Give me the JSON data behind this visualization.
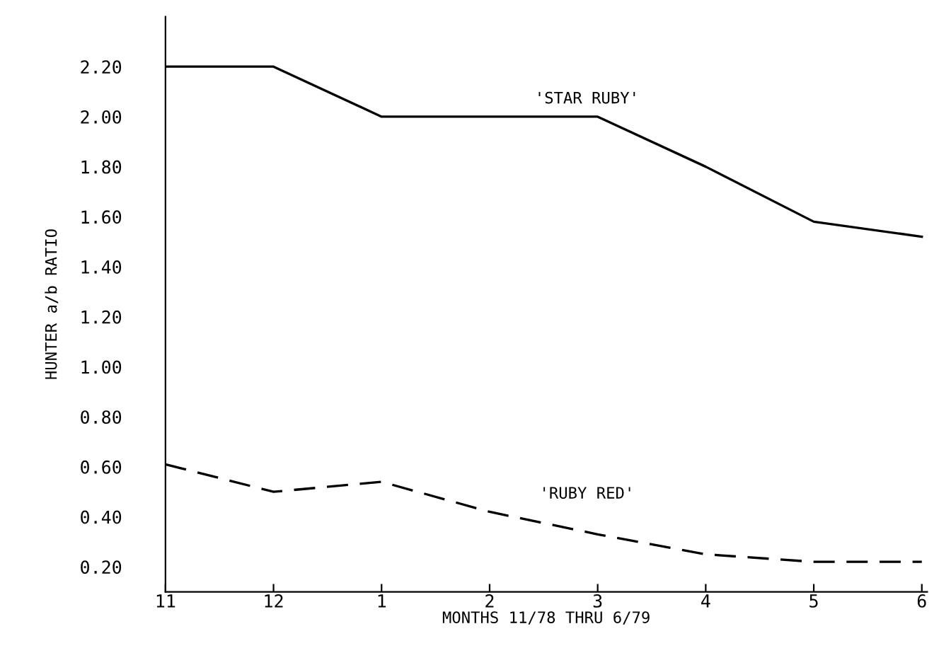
{
  "chart_data": {
    "type": "line",
    "xlabel": "MONTHS 11/78 THRU 6/79",
    "ylabel": "HUNTER a/b RATIO",
    "categories": [
      "11",
      "12",
      "1",
      "2",
      "3",
      "4",
      "5",
      "6"
    ],
    "series": [
      {
        "name": "'STAR RUBY'",
        "color": "#000000",
        "line_style": "solid",
        "values": [
          2.2,
          2.2,
          2.0,
          2.0,
          2.0,
          1.8,
          1.58,
          1.52
        ]
      },
      {
        "name": "'RUBY RED'",
        "color": "#000000",
        "line_style": "dashed",
        "values": [
          0.61,
          0.5,
          0.54,
          0.42,
          0.33,
          0.25,
          0.22,
          0.22
        ]
      }
    ],
    "ylim": [
      0.1,
      2.4
    ],
    "yticks": [
      {
        "value": 0.2,
        "label": "0.20"
      },
      {
        "value": 0.4,
        "label": "0.40"
      },
      {
        "value": 0.6,
        "label": "0.60"
      },
      {
        "value": 0.8,
        "label": "0.80"
      },
      {
        "value": 1.0,
        "label": "1.00"
      },
      {
        "value": 1.2,
        "label": "1.20"
      },
      {
        "value": 1.4,
        "label": "1.40"
      },
      {
        "value": 1.6,
        "label": "1.60"
      },
      {
        "value": 1.8,
        "label": "1.80"
      },
      {
        "value": 2.0,
        "label": "2.00"
      },
      {
        "value": 2.2,
        "label": "2.20"
      }
    ],
    "grid": false,
    "legend": false,
    "marker": "none"
  }
}
